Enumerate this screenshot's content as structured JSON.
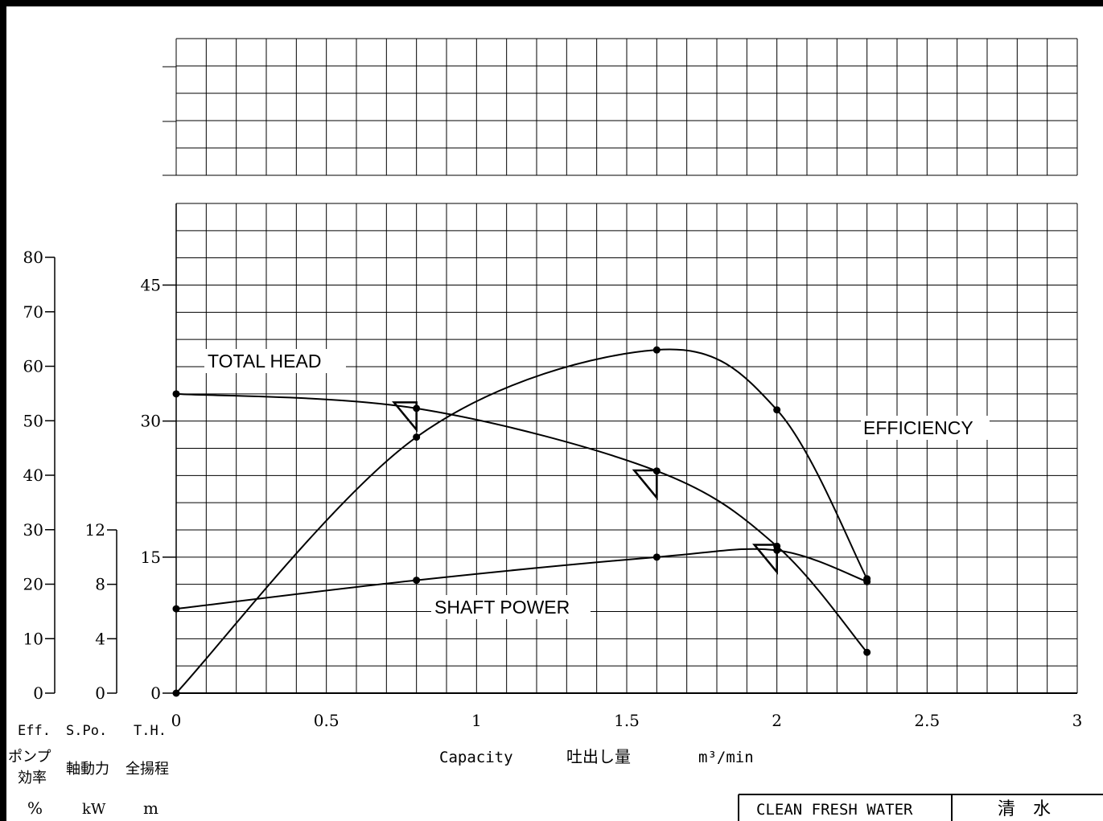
{
  "chart_data": {
    "type": "line",
    "x_ticks": [
      "0",
      "0.5",
      "1",
      "1.5",
      "2",
      "2.5",
      "3"
    ],
    "head_ticks": [
      "0",
      "15",
      "30",
      "45"
    ],
    "power_ticks": [
      "0",
      "4",
      "8",
      "12"
    ],
    "eff_ticks": [
      "0",
      "10",
      "20",
      "30",
      "40",
      "50",
      "60",
      "70",
      "80"
    ],
    "xlim": [
      0,
      3
    ],
    "head_ylim": [
      0,
      54
    ],
    "grid": true,
    "series": [
      {
        "name": "TOTAL HEAD",
        "axis": "head",
        "x": [
          0,
          0.8,
          1.6,
          2.0,
          2.3
        ],
        "y": [
          33,
          31.4,
          24.5,
          16.2,
          4.5
        ]
      },
      {
        "name": "SHAFT POWER",
        "axis": "power",
        "x": [
          0,
          0.8,
          1.6,
          2.0,
          2.3
        ],
        "y": [
          6.2,
          8.3,
          10.0,
          10.5,
          8.2
        ]
      },
      {
        "name": "EFFICIENCY",
        "axis": "efficiency",
        "x": [
          0,
          0.8,
          1.6,
          2.0,
          2.3
        ],
        "y": [
          0,
          47,
          63,
          52,
          21
        ]
      }
    ],
    "markers": [
      {
        "x": 0.8,
        "y": 31
      },
      {
        "x": 1.6,
        "y": 23.5
      },
      {
        "x": 2.0,
        "y": 15.3
      }
    ]
  },
  "axis_labels": {
    "eff_abbr": "Eff.",
    "power_abbr": "S.Po.",
    "head_abbr": "T.H.",
    "eff_jp_1": "ポンプ",
    "eff_jp_2": "効率",
    "power_jp": "軸動力",
    "head_jp": "全揚程",
    "eff_unit": "%",
    "power_unit": "kW",
    "head_unit": "m",
    "capacity": "Capacity",
    "capacity_jp": "吐出し量",
    "capacity_unit": "m³/min"
  },
  "title_box": {
    "en": "CLEAN FRESH WATER",
    "jp": "清　水"
  }
}
